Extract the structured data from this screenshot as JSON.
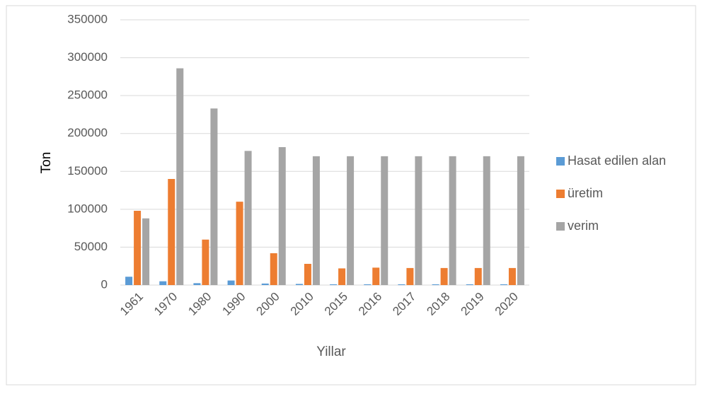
{
  "chart_data": {
    "type": "bar",
    "categories": [
      "1961",
      "1970",
      "1980",
      "1990",
      "2000",
      "2010",
      "2015",
      "2016",
      "2017",
      "2018",
      "2019",
      "2020"
    ],
    "series": [
      {
        "name": "Hasat edilen alan",
        "color": "#5b9bd5",
        "values": [
          11000,
          5000,
          2500,
          6000,
          2000,
          1500,
          1000,
          1000,
          1000,
          1000,
          1000,
          1000
        ]
      },
      {
        "name": "üretim",
        "color": "#ed7d31",
        "values": [
          98000,
          140000,
          60000,
          110000,
          42000,
          28000,
          22000,
          23000,
          22500,
          22500,
          22500,
          22500
        ]
      },
      {
        "name": " verim",
        "color": "#a5a5a5",
        "values": [
          88000,
          286000,
          233000,
          177000,
          182000,
          170000,
          170000,
          170000,
          170000,
          170000,
          170000,
          170000
        ]
      }
    ],
    "ylabel": "Ton",
    "xlabel": "Yillar",
    "ylim": [
      0,
      350000
    ],
    "yticks": [
      0,
      50000,
      100000,
      150000,
      200000,
      250000,
      300000,
      350000
    ],
    "grid": true,
    "legend": "right"
  }
}
